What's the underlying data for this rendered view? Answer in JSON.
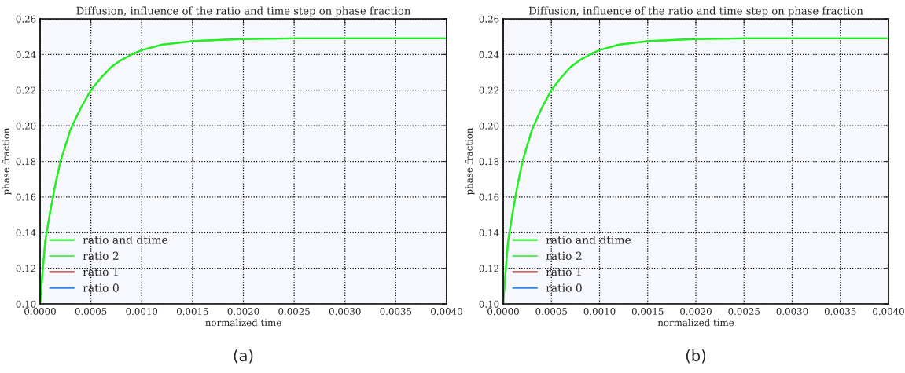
{
  "chart_data": [
    {
      "type": "line",
      "title": "Diffusion, influence of the ratio and time step on phase fraction",
      "xlabel": "normalized time",
      "ylabel": "phase fraction",
      "annotations": [
        "(a)"
      ],
      "x": [
        0,
        2e-05,
        5e-05,
        0.0001,
        0.00015,
        0.0002,
        0.0003,
        0.0004,
        0.0005,
        0.0006,
        0.0007,
        0.0008,
        0.0009,
        0.001,
        0.0012,
        0.0015,
        0.002,
        0.0025,
        0.003,
        0.004
      ],
      "series": [
        {
          "name": "ratio and dtime",
          "color": "#22ee22",
          "values": [
            0.1,
            0.115,
            0.135,
            0.152,
            0.167,
            0.18,
            0.198,
            0.21,
            0.22,
            0.227,
            0.233,
            0.237,
            0.24,
            0.2425,
            0.2455,
            0.2475,
            0.2487,
            0.249,
            0.249,
            0.249
          ]
        },
        {
          "name": "ratio 2",
          "color": "#55ee55",
          "values": [
            0.1,
            0.115,
            0.135,
            0.152,
            0.167,
            0.18,
            0.198,
            0.21,
            0.22,
            0.227,
            0.233,
            0.237,
            0.24,
            0.2425,
            0.2455,
            0.2475,
            0.2487,
            0.249,
            0.249,
            0.249
          ]
        },
        {
          "name": "ratio 1",
          "color": "#a04040",
          "values": [
            null,
            null,
            null,
            null,
            null,
            null,
            null,
            null,
            null,
            null,
            null,
            null,
            null,
            null,
            null,
            null,
            null,
            null,
            null,
            null
          ]
        },
        {
          "name": "ratio 0",
          "color": "#3388ee",
          "values": [
            null,
            null,
            null,
            null,
            null,
            null,
            null,
            null,
            null,
            null,
            null,
            null,
            null,
            null,
            null,
            null,
            null,
            null,
            null,
            null
          ]
        }
      ],
      "xlim": [
        0,
        0.004
      ],
      "xticks": [
        {
          "value": 0,
          "label": "0.0000"
        },
        {
          "value": 0.0005,
          "label": "0.0005"
        },
        {
          "value": 0.001,
          "label": "0.0010"
        },
        {
          "value": 0.0015,
          "label": "0.0015"
        },
        {
          "value": 0.002,
          "label": "0.0020"
        },
        {
          "value": 0.0025,
          "label": "0.0025"
        },
        {
          "value": 0.003,
          "label": "0.0030"
        },
        {
          "value": 0.0035,
          "label": "0.0035"
        },
        {
          "value": 0.004,
          "label": "0.0040"
        }
      ],
      "ylim": [
        0.1,
        0.26
      ],
      "yticks": [
        {
          "value": 0.1,
          "label": "0.10"
        },
        {
          "value": 0.12,
          "label": "0.12"
        },
        {
          "value": 0.14,
          "label": "0.14"
        },
        {
          "value": 0.16,
          "label": "0.16"
        },
        {
          "value": 0.18,
          "label": "0.18"
        },
        {
          "value": 0.2,
          "label": "0.20"
        },
        {
          "value": 0.22,
          "label": "0.22"
        },
        {
          "value": 0.24,
          "label": "0.24"
        },
        {
          "value": 0.26,
          "label": "0.26"
        }
      ],
      "grid": true,
      "legend": "bottom left",
      "line_style": "solid",
      "marker": "none"
    },
    {
      "type": "line",
      "title": "Diffusion, influence of the ratio and time step on phase fraction",
      "xlabel": "normalized time",
      "ylabel": "phase fraction",
      "annotations": [
        "(b)"
      ],
      "x": [
        0,
        2e-05,
        5e-05,
        0.0001,
        0.00015,
        0.0002,
        0.0003,
        0.0004,
        0.0005,
        0.0006,
        0.0007,
        0.0008,
        0.0009,
        0.001,
        0.0012,
        0.0015,
        0.002,
        0.0025,
        0.003,
        0.004
      ],
      "series": [
        {
          "name": "ratio and dtime",
          "color": "#22ee22",
          "values": [
            0.1,
            0.115,
            0.135,
            0.152,
            0.167,
            0.18,
            0.198,
            0.21,
            0.22,
            0.227,
            0.233,
            0.237,
            0.24,
            0.2425,
            0.2455,
            0.2475,
            0.2487,
            0.249,
            0.249,
            0.249
          ]
        },
        {
          "name": "ratio 2",
          "color": "#55ee55",
          "values": [
            0.1,
            0.115,
            0.135,
            0.152,
            0.167,
            0.18,
            0.198,
            0.21,
            0.22,
            0.227,
            0.233,
            0.237,
            0.24,
            0.2425,
            0.2455,
            0.2475,
            0.2487,
            0.249,
            0.249,
            0.249
          ]
        },
        {
          "name": "ratio 1",
          "color": "#a04040",
          "values": [
            null,
            null,
            null,
            null,
            null,
            null,
            null,
            null,
            null,
            null,
            null,
            null,
            null,
            null,
            null,
            null,
            null,
            null,
            null,
            null
          ]
        },
        {
          "name": "ratio 0",
          "color": "#3388ee",
          "values": [
            null,
            null,
            null,
            null,
            null,
            null,
            null,
            null,
            null,
            null,
            null,
            null,
            null,
            null,
            null,
            null,
            null,
            null,
            null,
            null
          ]
        }
      ],
      "xlim": [
        0,
        0.004
      ],
      "xticks": [
        {
          "value": 0,
          "label": "0.0000"
        },
        {
          "value": 0.0005,
          "label": "0.0005"
        },
        {
          "value": 0.001,
          "label": "0.0010"
        },
        {
          "value": 0.0015,
          "label": "0.0015"
        },
        {
          "value": 0.002,
          "label": "0.0020"
        },
        {
          "value": 0.0025,
          "label": "0.0025"
        },
        {
          "value": 0.003,
          "label": "0.0030"
        },
        {
          "value": 0.0035,
          "label": "0.0035"
        },
        {
          "value": 0.004,
          "label": "0.0040"
        }
      ],
      "ylim": [
        0.1,
        0.26
      ],
      "yticks": [
        {
          "value": 0.1,
          "label": "0.10"
        },
        {
          "value": 0.12,
          "label": "0.12"
        },
        {
          "value": 0.14,
          "label": "0.14"
        },
        {
          "value": 0.16,
          "label": "0.16"
        },
        {
          "value": 0.18,
          "label": "0.18"
        },
        {
          "value": 0.2,
          "label": "0.20"
        },
        {
          "value": 0.22,
          "label": "0.22"
        },
        {
          "value": 0.24,
          "label": "0.24"
        },
        {
          "value": 0.26,
          "label": "0.26"
        }
      ],
      "grid": true,
      "legend": "bottom left",
      "line_style": "solid",
      "marker": "none"
    }
  ]
}
